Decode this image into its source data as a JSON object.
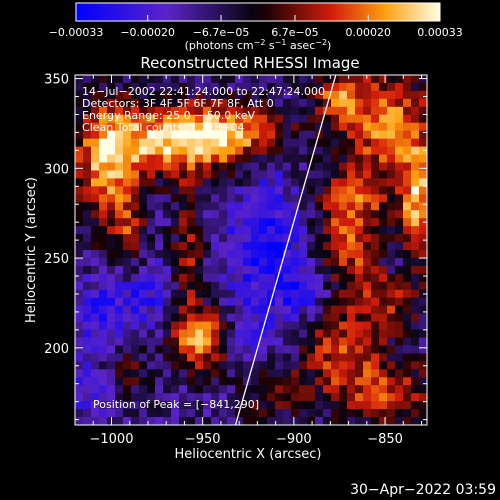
{
  "chart_data": {
    "type": "heatmap",
    "title": "Reconstructed RHESSI Image",
    "xlabel": "Heliocentric X (arcsec)",
    "ylabel": "Heliocentric Y (arcsec)",
    "xlim": [
      -1020,
      -827
    ],
    "ylim": [
      157,
      352
    ],
    "xticks": [
      -1000,
      -950,
      -900,
      -850
    ],
    "yticks": [
      200,
      250,
      300,
      350
    ],
    "x_ticklabels": [
      "−1000",
      "−950",
      "−900",
      "−850"
    ],
    "y_ticklabels": [
      "200",
      "250",
      "300",
      "350"
    ],
    "colorbar": {
      "ticks": [
        -0.00033,
        -0.0002,
        -6.7e-05,
        6.7e-05,
        0.0002,
        0.00033
      ],
      "ticklabels": [
        "−0.00033",
        "−0.00020",
        "−6.7e−05",
        "6.7e−05",
        "0.00020",
        "0.00033"
      ],
      "range": [
        -0.00033,
        0.00033
      ],
      "unit_main": "(photons cm",
      "unit_sup1": "−2",
      "unit_mid1": " s",
      "unit_sup2": "−1",
      "unit_mid2": " asec",
      "unit_sup3": "−2",
      "unit_end": ")"
    },
    "annotations": {
      "time": "14−Jul−2002 22:41:24.000 to 22:47:24.000",
      "detectors": "Detectors: 3F 4F 5F 6F 7F 8F, Att 0",
      "energy": "Energy Range: 25.0 − 50.0 keV",
      "clean": "Clean      Total counts: 1.11E+04",
      "peak": "Position of Peak = [−841,290]"
    },
    "limb_line": {
      "x": [
        -932,
        -877
      ],
      "y": [
        157,
        352
      ]
    },
    "bright_regions": [
      {
        "x": -970,
        "y": 315,
        "sx": 28,
        "sy": 14,
        "level": 0.0003
      },
      {
        "x": -1003,
        "y": 300,
        "sx": 12,
        "sy": 26,
        "level": 0.00026
      },
      {
        "x": -935,
        "y": 320,
        "sx": 22,
        "sy": 12,
        "level": 0.00024
      },
      {
        "x": -950,
        "y": 205,
        "sx": 12,
        "sy": 12,
        "level": 0.0003
      },
      {
        "x": -958,
        "y": 250,
        "sx": 6,
        "sy": 28,
        "level": 0.00018
      },
      {
        "x": -990,
        "y": 262,
        "sx": 6,
        "sy": 16,
        "level": 0.00016
      },
      {
        "x": -875,
        "y": 340,
        "sx": 10,
        "sy": 10,
        "level": 0.00022
      },
      {
        "x": -848,
        "y": 322,
        "sx": 18,
        "sy": 22,
        "level": 0.00028
      },
      {
        "x": -832,
        "y": 280,
        "sx": 8,
        "sy": 22,
        "level": 0.0003
      },
      {
        "x": -868,
        "y": 282,
        "sx": 14,
        "sy": 12,
        "level": 0.0002
      },
      {
        "x": -870,
        "y": 255,
        "sx": 14,
        "sy": 14,
        "level": 0.0002
      },
      {
        "x": -850,
        "y": 228,
        "sx": 14,
        "sy": 14,
        "level": 0.00018
      },
      {
        "x": -875,
        "y": 200,
        "sx": 14,
        "sy": 16,
        "level": 0.0002
      },
      {
        "x": -850,
        "y": 175,
        "sx": 22,
        "sy": 14,
        "level": 0.0002
      },
      {
        "x": -912,
        "y": 175,
        "sx": 12,
        "sy": 12,
        "level": 0.00014
      },
      {
        "x": -992,
        "y": 185,
        "sx": 8,
        "sy": 10,
        "level": 0.00012
      }
    ],
    "dark_regions": [
      {
        "x": -915,
        "y": 255,
        "sx": 16,
        "sy": 24,
        "level": -0.00022
      },
      {
        "x": -915,
        "y": 300,
        "sx": 8,
        "sy": 8,
        "level": -0.0001
      },
      {
        "x": -985,
        "y": 230,
        "sx": 14,
        "sy": 14,
        "level": -0.00016
      },
      {
        "x": -1010,
        "y": 215,
        "sx": 8,
        "sy": 16,
        "level": -0.00014
      },
      {
        "x": -1010,
        "y": 175,
        "sx": 10,
        "sy": 10,
        "level": -0.00012
      },
      {
        "x": -845,
        "y": 295,
        "sx": 6,
        "sy": 8,
        "level": -0.00012
      },
      {
        "x": -845,
        "y": 250,
        "sx": 6,
        "sy": 10,
        "level": -0.00014
      },
      {
        "x": -925,
        "y": 205,
        "sx": 10,
        "sy": 12,
        "level": -0.00014
      },
      {
        "x": -895,
        "y": 230,
        "sx": 10,
        "sy": 10,
        "level": -0.00014
      }
    ]
  },
  "footer": {
    "timestamp": "30−Apr−2022 03:59"
  }
}
